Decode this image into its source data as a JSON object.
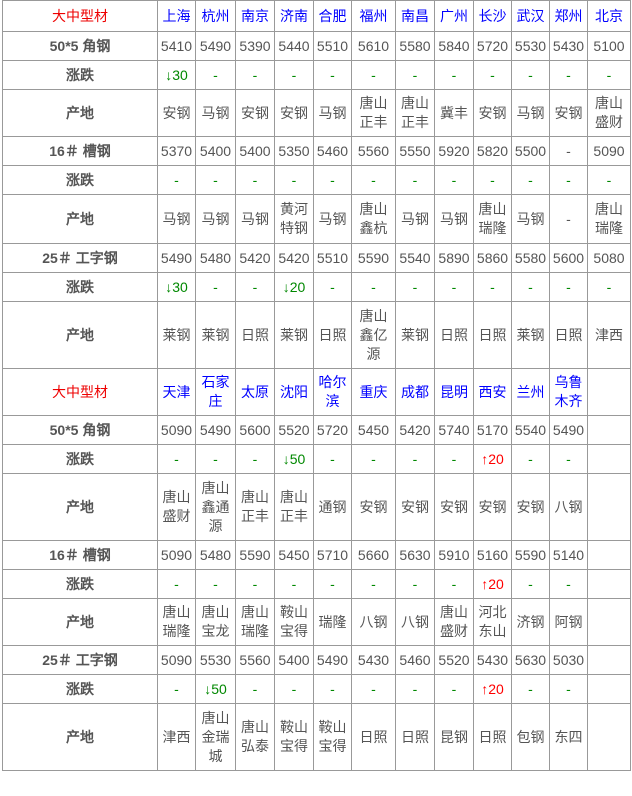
{
  "colors": {
    "header_label": "#e00000",
    "city": "#0000ff",
    "down": "#008000",
    "up": "#ff0000",
    "text": "#555555"
  },
  "sections": [
    {
      "title": "大中型材",
      "cities": [
        "上海",
        "杭州",
        "南京",
        "济南",
        "合肥",
        "福州",
        "南昌",
        "广州",
        "长沙",
        "武汉",
        "郑州",
        "北京"
      ],
      "products": [
        {
          "name": "50*5 角钢",
          "prices": [
            "5410",
            "5490",
            "5390",
            "5440",
            "5510",
            "5610",
            "5580",
            "5840",
            "5720",
            "5530",
            "5430",
            "5100"
          ],
          "change_label": "涨跌",
          "changes": [
            "↓30",
            "-",
            "-",
            "-",
            "-",
            "-",
            "-",
            "-",
            "-",
            "-",
            "-",
            "-"
          ],
          "origin_label": "产地",
          "origins": [
            "安钢",
            "马钢",
            "安钢",
            "安钢",
            "马钢",
            "唐山正丰",
            "唐山正丰",
            "冀丰",
            "安钢",
            "马钢",
            "安钢",
            "唐山盛财"
          ]
        },
        {
          "name": "16＃ 槽钢",
          "prices": [
            "5370",
            "5400",
            "5400",
            "5350",
            "5460",
            "5560",
            "5550",
            "5920",
            "5820",
            "5500",
            "-",
            "5090"
          ],
          "change_label": "涨跌",
          "changes": [
            "-",
            "-",
            "-",
            "-",
            "-",
            "-",
            "-",
            "-",
            "-",
            "-",
            "-",
            "-"
          ],
          "origin_label": "产地",
          "origins": [
            "马钢",
            "马钢",
            "马钢",
            "黄河特钢",
            "马钢",
            "唐山鑫杭",
            "马钢",
            "马钢",
            "唐山瑞隆",
            "马钢",
            "-",
            "唐山瑞隆"
          ]
        },
        {
          "name": "25＃ 工字钢",
          "prices": [
            "5490",
            "5480",
            "5420",
            "5420",
            "5510",
            "5590",
            "5540",
            "5890",
            "5860",
            "5580",
            "5600",
            "5080"
          ],
          "change_label": "涨跌",
          "changes": [
            "↓30",
            "-",
            "-",
            "↓20",
            "-",
            "-",
            "-",
            "-",
            "-",
            "-",
            "-",
            "-"
          ],
          "origin_label": "产地",
          "origins": [
            "莱钢",
            "莱钢",
            "日照",
            "莱钢",
            "日照",
            "唐山鑫亿源",
            "莱钢",
            "日照",
            "日照",
            "莱钢",
            "日照",
            "津西"
          ]
        }
      ]
    },
    {
      "title": "大中型材",
      "cities": [
        "天津",
        "石家庄",
        "太原",
        "沈阳",
        "哈尔滨",
        "重庆",
        "成都",
        "昆明",
        "西安",
        "兰州",
        "乌鲁木齐",
        ""
      ],
      "products": [
        {
          "name": "50*5 角钢",
          "prices": [
            "5090",
            "5490",
            "5600",
            "5520",
            "5720",
            "5450",
            "5420",
            "5740",
            "5170",
            "5540",
            "5490",
            ""
          ],
          "change_label": "涨跌",
          "changes": [
            "-",
            "-",
            "-",
            "↓50",
            "-",
            "-",
            "-",
            "-",
            "↑20",
            "-",
            "-",
            ""
          ],
          "origin_label": "产地",
          "origins": [
            "唐山盛财",
            "唐山鑫通源",
            "唐山正丰",
            "唐山正丰",
            "通钢",
            "安钢",
            "安钢",
            "安钢",
            "安钢",
            "安钢",
            "八钢",
            ""
          ]
        },
        {
          "name": "16＃ 槽钢",
          "prices": [
            "5090",
            "5480",
            "5590",
            "5450",
            "5710",
            "5660",
            "5630",
            "5910",
            "5160",
            "5590",
            "5140",
            ""
          ],
          "change_label": "涨跌",
          "changes": [
            "-",
            "-",
            "-",
            "-",
            "-",
            "-",
            "-",
            "-",
            "↑20",
            "-",
            "-",
            ""
          ],
          "origin_label": "产地",
          "origins": [
            "唐山瑞隆",
            "唐山宝龙",
            "唐山瑞隆",
            "鞍山宝得",
            "瑞隆",
            "八钢",
            "八钢",
            "唐山盛财",
            "河北东山",
            "济钢",
            "阿钢",
            ""
          ]
        },
        {
          "name": "25＃ 工字钢",
          "prices": [
            "5090",
            "5530",
            "5560",
            "5400",
            "5490",
            "5430",
            "5460",
            "5520",
            "5430",
            "5630",
            "5030",
            ""
          ],
          "change_label": "涨跌",
          "changes": [
            "-",
            "↓50",
            "-",
            "-",
            "-",
            "-",
            "-",
            "-",
            "↑20",
            "-",
            "-",
            ""
          ],
          "origin_label": "产地",
          "origins": [
            "津西",
            "唐山金瑞城",
            "唐山弘泰",
            "鞍山宝得",
            "鞍山宝得",
            "日照",
            "日照",
            "昆钢",
            "日照",
            "包钢",
            "东四",
            ""
          ]
        }
      ]
    }
  ]
}
